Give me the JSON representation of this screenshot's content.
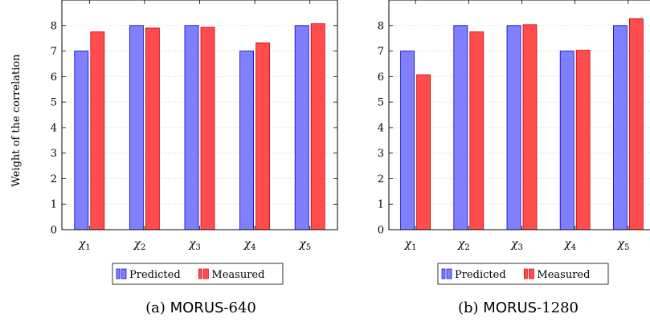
{
  "chart_data": [
    {
      "type": "bar",
      "panel": "a",
      "caption_prefix": "(a) ",
      "caption_name": "MORUS",
      "caption_suffix": "-640",
      "ylabel": "Weight of the correlation",
      "ylim": [
        0,
        9
      ],
      "yticks": [
        "0",
        "1",
        "2",
        "3",
        "4",
        "5",
        "6",
        "7",
        "8"
      ],
      "categories": [
        "χ1",
        "χ2",
        "χ3",
        "χ4",
        "χ5"
      ],
      "grid": true,
      "legend": "bottom",
      "series": [
        {
          "name": "Predicted",
          "color": "#8080ff",
          "stroke": "#0000cc",
          "values": [
            7,
            8,
            8,
            7,
            8
          ]
        },
        {
          "name": "Measured",
          "color": "#ff4d4d",
          "stroke": "#cc0000",
          "values": [
            7.75,
            7.9,
            7.93,
            7.32,
            8.07
          ]
        }
      ]
    },
    {
      "type": "bar",
      "panel": "b",
      "caption_prefix": "(b) ",
      "caption_name": "MORUS",
      "caption_suffix": "-1280",
      "ylabel": "",
      "ylim": [
        0,
        9
      ],
      "yticks": [
        "0",
        "1",
        "2",
        "3",
        "4",
        "5",
        "6",
        "7",
        "8"
      ],
      "categories": [
        "χ1",
        "χ2",
        "χ3",
        "χ4",
        "χ5"
      ],
      "grid": true,
      "legend": "bottom",
      "series": [
        {
          "name": "Predicted",
          "color": "#8080ff",
          "stroke": "#0000cc",
          "values": [
            7,
            8,
            8,
            7,
            8
          ]
        },
        {
          "name": "Measured",
          "color": "#ff4d4d",
          "stroke": "#cc0000",
          "values": [
            6.07,
            7.75,
            8.03,
            7.03,
            8.27
          ]
        }
      ]
    }
  ]
}
